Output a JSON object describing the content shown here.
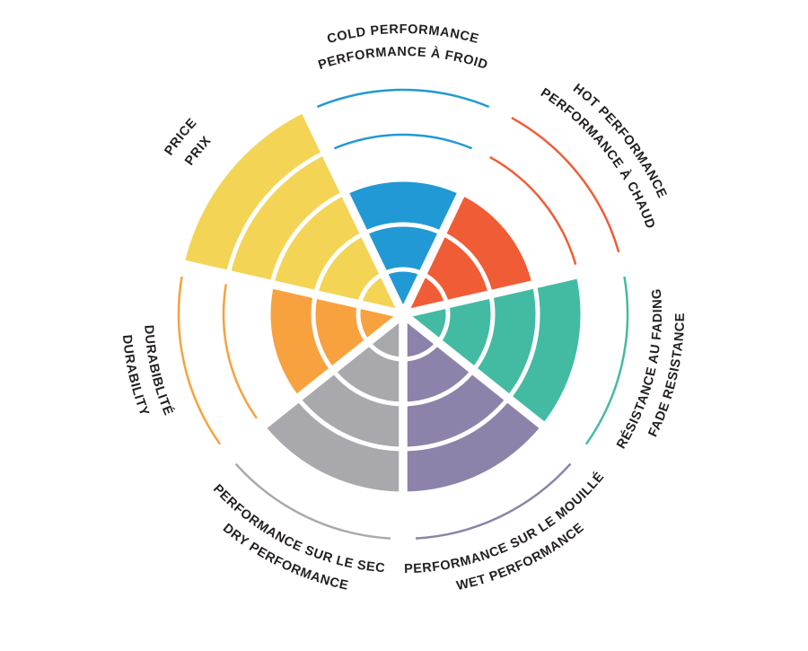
{
  "page": {
    "background": "#FFFFFF"
  },
  "chart_data": {
    "type": "polar_bar",
    "title": "",
    "subtitle": "",
    "description": "Seven-sector bilingual performance wheel; each sector is filled to its rating level out of 5 concentric rings; unfilled levels are shown as thin colored arcs",
    "scale": {
      "min": 0,
      "max": 5,
      "rings": 5
    },
    "grid": true,
    "grid_color": "#FFFFFF",
    "label_color": "#231F20",
    "legend_position": "none",
    "categories": [
      {
        "id": "cold-performance",
        "label_line1": "COLD PERFORMANCE",
        "label_line2": "PERFORMANCE À FROID",
        "value": 3,
        "color": "#2199D4",
        "label_flip": false
      },
      {
        "id": "hot-performance",
        "label_line1": "HOT PERFORMANCE",
        "label_line2": "PERFORMANCE À CHAUD",
        "value": 3,
        "color": "#F05C35",
        "label_flip": false
      },
      {
        "id": "fade-resistance",
        "label_line1": "RÉSISTANCE AU FADING",
        "label_line2": "FADE RESISTANCE",
        "value": 4,
        "color": "#43BBA3",
        "label_flip": true
      },
      {
        "id": "wet-performance",
        "label_line1": "PERFORMANCE SUR LE MOUILLÉ",
        "label_line2": "WET PERFORMANCE",
        "value": 4,
        "color": "#8C82AA",
        "label_flip": true
      },
      {
        "id": "dry-performance",
        "label_line1": "PERFORMANCE SUR LE SEC",
        "label_line2": "DRY PERFORMANCE",
        "value": 4,
        "color": "#A9A8AC",
        "label_flip": true
      },
      {
        "id": "durability",
        "label_line1": "DURABIBLITÉ",
        "label_line2": "DURABILITY",
        "value": 3,
        "color": "#F8A13F",
        "label_flip": true
      },
      {
        "id": "price",
        "label_line1": "PRICE",
        "label_line2": "PRIX",
        "value": 5,
        "color": "#F3D455",
        "label_flip": false
      }
    ]
  }
}
